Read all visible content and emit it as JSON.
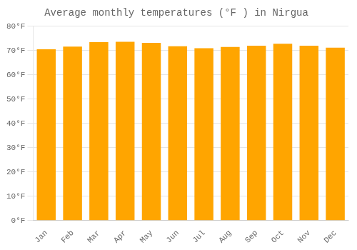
{
  "chart_data": {
    "type": "bar",
    "title": "Average monthly temperatures (°F ) in Nirgua",
    "categories": [
      "Jan",
      "Feb",
      "Mar",
      "Apr",
      "May",
      "Jun",
      "Jul",
      "Aug",
      "Sep",
      "Oct",
      "Nov",
      "Dec"
    ],
    "values": [
      70.5,
      71.6,
      73.5,
      73.6,
      73.2,
      71.8,
      71.0,
      71.5,
      72.0,
      72.8,
      72.0,
      71.2
    ],
    "color": "#FFA500",
    "ylim": [
      0,
      80
    ],
    "yticks": [
      {
        "value": 0,
        "label": "0°F"
      },
      {
        "value": 10,
        "label": "10°F"
      },
      {
        "value": 20,
        "label": "20°F"
      },
      {
        "value": 30,
        "label": "30°F"
      },
      {
        "value": 40,
        "label": "40°F"
      },
      {
        "value": 50,
        "label": "50°F"
      },
      {
        "value": 60,
        "label": "60°F"
      },
      {
        "value": 70,
        "label": "70°F"
      },
      {
        "value": 80,
        "label": "80°F"
      }
    ],
    "grid": true
  }
}
